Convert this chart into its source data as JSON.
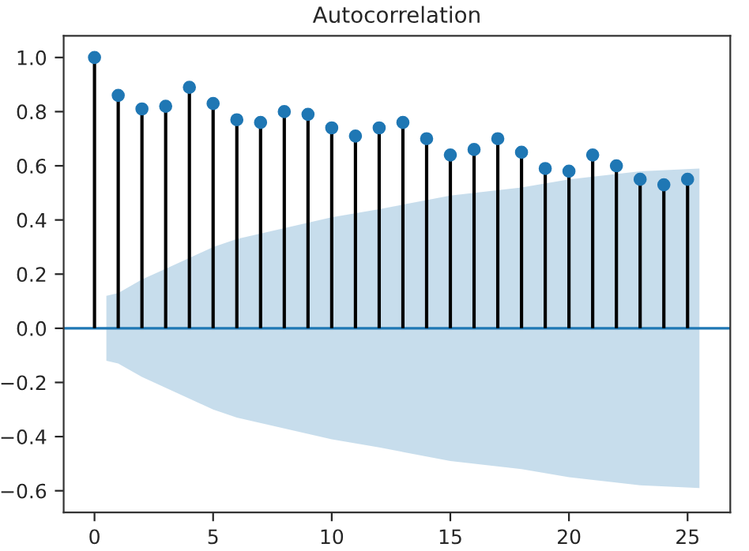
{
  "chart_data": {
    "type": "lollipop",
    "title": "Autocorrelation",
    "xlim": [
      -1.3,
      26.8
    ],
    "ylim": [
      -0.68,
      1.08
    ],
    "xticks": [
      0,
      5,
      10,
      15,
      20,
      25
    ],
    "yticks": [
      {
        "value": -0.6,
        "label": "−0.6"
      },
      {
        "value": -0.4,
        "label": "−0.4"
      },
      {
        "value": -0.2,
        "label": "−0.2"
      },
      {
        "value": 0,
        "label": "0.0"
      },
      0.2,
      0.4,
      0.6,
      0.8,
      {
        "value": 1,
        "label": "1.0"
      }
    ],
    "series": [
      {
        "type": "line",
        "color": "#1f77b4",
        "x": [
          -1.3,
          0.5,
          1,
          2,
          3,
          4,
          5,
          6,
          8,
          10,
          12,
          15,
          18,
          20,
          23,
          25.5,
          26.8
        ],
        "values": [
          0,
          0,
          0,
          0,
          0,
          0,
          0,
          0,
          0,
          0,
          0,
          0,
          0,
          0,
          0,
          0,
          0
        ],
        "lower": [
          null,
          -0.12,
          -0.13,
          -0.18,
          -0.22,
          -0.26,
          -0.3,
          -0.33,
          -0.37,
          -0.41,
          -0.44,
          -0.49,
          -0.52,
          -0.55,
          -0.58,
          -0.59,
          null
        ],
        "upper": [
          null,
          0.12,
          0.13,
          0.18,
          0.22,
          0.26,
          0.3,
          0.33,
          0.37,
          0.41,
          0.44,
          0.49,
          0.52,
          0.55,
          0.58,
          0.59,
          null
        ]
      },
      {
        "color": "#1f77b4",
        "marker": "circle",
        "x": [
          0,
          1,
          2,
          3,
          4,
          5,
          6,
          7,
          8,
          9,
          10,
          11,
          12,
          13,
          14,
          15,
          16,
          17,
          18,
          19,
          20,
          21,
          22,
          23,
          24,
          25
        ],
        "values": [
          1.0,
          0.86,
          0.81,
          0.82,
          0.89,
          0.83,
          0.77,
          0.76,
          0.8,
          0.79,
          0.74,
          0.71,
          0.74,
          0.76,
          0.7,
          0.64,
          0.66,
          0.7,
          0.65,
          0.59,
          0.58,
          0.64,
          0.6,
          0.55,
          0.53,
          0.55
        ]
      }
    ]
  }
}
